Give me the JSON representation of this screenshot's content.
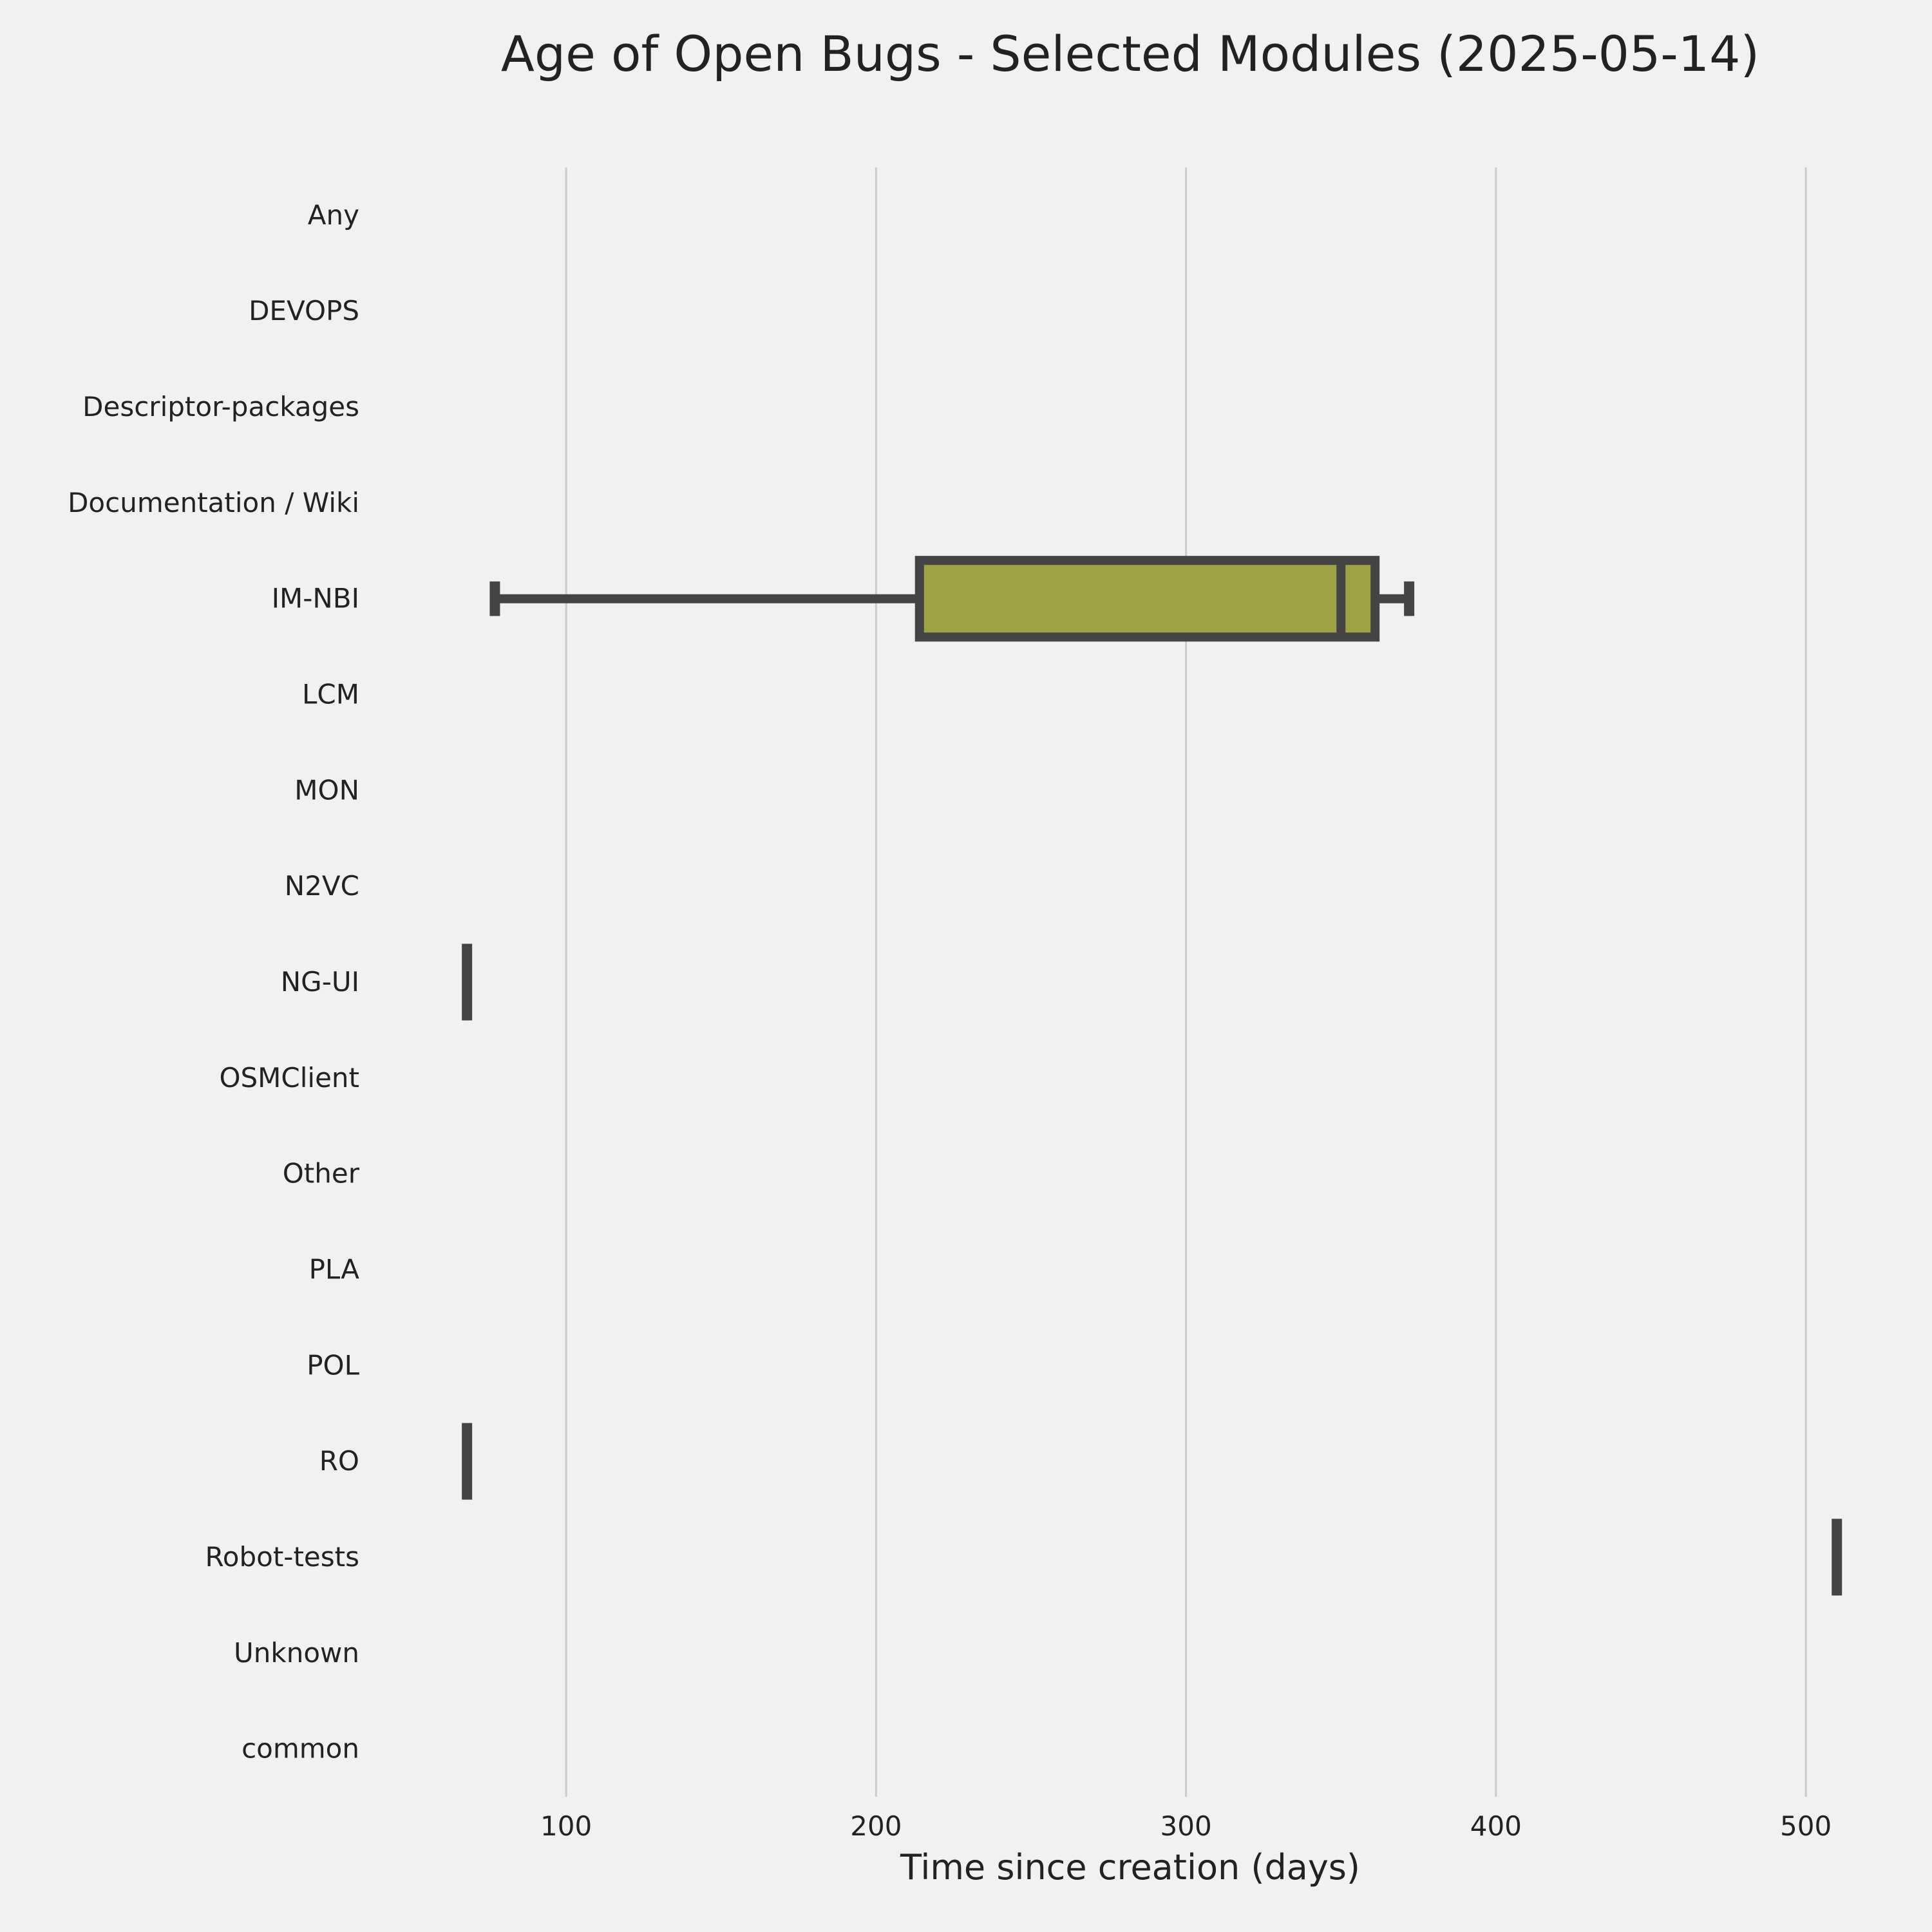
{
  "chart_data": {
    "type": "box",
    "orientation": "horizontal",
    "title": "Age of Open Bugs - Selected Modules (2025-05-14)",
    "xlabel": "Time since creation (days)",
    "ylabel": "",
    "xlim": [
      42,
      522
    ],
    "xticks": [
      100,
      200,
      300,
      400,
      500
    ],
    "xtick_labels": [
      "100",
      "200",
      "300",
      "400",
      "500"
    ],
    "grid": "vertical",
    "categories": [
      "Any",
      "DEVOPS",
      "Descriptor-packages",
      "Documentation / Wiki",
      "IM-NBI",
      "LCM",
      "MON",
      "N2VC",
      "NG-UI",
      "OSMClient",
      "Other",
      "PLA",
      "POL",
      "RO",
      "Robot-tests",
      "Unknown",
      "common"
    ],
    "boxes": [
      {
        "category": "IM-NBI",
        "whisker_low": 77,
        "q1": 214,
        "median": 350,
        "q3": 361,
        "whisker_high": 372
      },
      {
        "category": "NG-UI",
        "whisker_low": 68,
        "q1": 68,
        "median": 68,
        "q3": 68,
        "whisker_high": 68
      },
      {
        "category": "RO",
        "whisker_low": 68,
        "q1": 68,
        "median": 68,
        "q3": 68,
        "whisker_high": 68
      },
      {
        "category": "Robot-tests",
        "whisker_low": 510,
        "q1": 510,
        "median": 510,
        "q3": 510,
        "whisker_high": 510
      }
    ],
    "colors": {
      "background": "#f1f1f1",
      "grid": "#cccccc",
      "box_fill": "#9ea147",
      "line": "#444444",
      "text": "#222222"
    }
  }
}
